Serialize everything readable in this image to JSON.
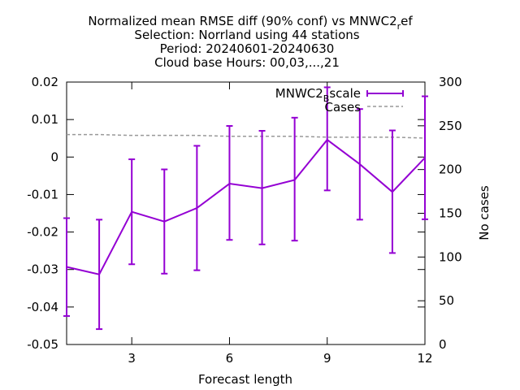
{
  "chart_data": {
    "type": "line",
    "title_lines": [
      "Normalized mean RMSE diff (90% conf) vs MNWC2",
      "Selection: Norrland using    44 stations",
      "Period: 20240601-20240630",
      "Cloud base   Hours: 00,03,...,21"
    ],
    "title_suffix_sub": "r",
    "title_suffix_rest": "ef",
    "xlabel": "Forecast length",
    "ylabel": "",
    "y2label": "No cases",
    "xlim": [
      1,
      12
    ],
    "ylim": [
      -0.05,
      0.02
    ],
    "y2lim": [
      0,
      300
    ],
    "xticks": [
      3,
      6,
      9,
      12
    ],
    "yticks": [
      -0.05,
      -0.04,
      -0.03,
      -0.02,
      -0.01,
      0,
      0.01,
      0.02
    ],
    "ytick_labels": [
      "-0.05",
      "-0.04",
      "-0.03",
      "-0.02",
      "-0.01",
      "0",
      "0.01",
      "0.02"
    ],
    "y2ticks": [
      0,
      50,
      100,
      150,
      200,
      250,
      300
    ],
    "grid": false,
    "legend_position": "top-right",
    "x": [
      1,
      2,
      3,
      4,
      5,
      6,
      7,
      8,
      9,
      10,
      11,
      12
    ],
    "series": [
      {
        "name": "MNWC2",
        "name_sub": "B",
        "name_rest": "scale",
        "color": "#9400d3",
        "axis": "y1",
        "style": "errorbars",
        "values": [
          -0.0293,
          -0.0313,
          -0.0146,
          -0.0172,
          -0.0136,
          -0.0071,
          -0.0083,
          -0.0061,
          0.0046,
          -0.0019,
          -0.0093,
          -0.0002
        ],
        "lower": [
          -0.0424,
          -0.0459,
          -0.0286,
          -0.0311,
          -0.0302,
          -0.0221,
          -0.0233,
          -0.0223,
          -0.0089,
          -0.0167,
          -0.0256,
          -0.0166
        ],
        "upper": [
          -0.0163,
          -0.0167,
          -0.0006,
          -0.0033,
          0.003,
          0.0083,
          0.007,
          0.0105,
          0.0186,
          0.0128,
          0.0071,
          0.0162
        ]
      },
      {
        "name": "Cases",
        "color": "#999999",
        "axis": "y2",
        "style": "dashed",
        "values": [
          240,
          240,
          239,
          239,
          239,
          238,
          238,
          238,
          237,
          237,
          237,
          236
        ]
      }
    ]
  }
}
